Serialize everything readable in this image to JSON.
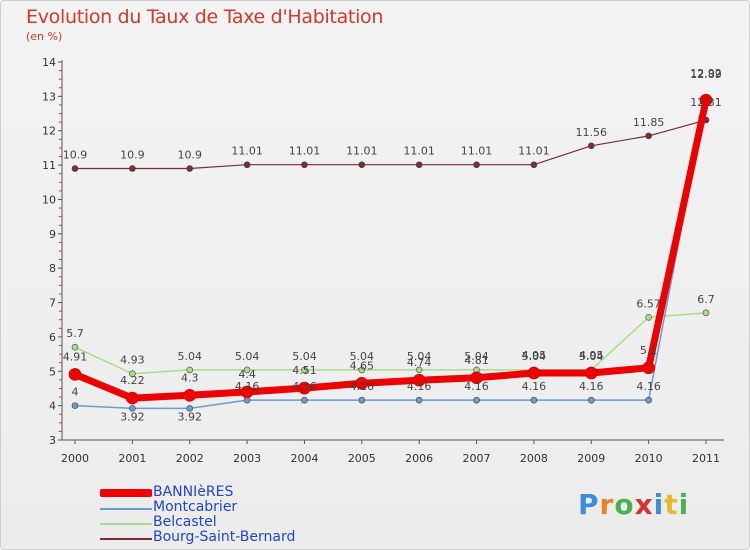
{
  "header": {
    "title": "Evolution du Taux de Taxe d'Habitation",
    "subtitle": "(en %)"
  },
  "logo": {
    "text": "Proxiti",
    "colors": [
      "#3b8fd8",
      "#e8822a",
      "#4caf50",
      "#d6322e",
      "#3b8fd8",
      "#e8b92a",
      "#4caf50"
    ]
  },
  "chart_data": {
    "type": "line",
    "x": [
      "2000",
      "2001",
      "2002",
      "2003",
      "2004",
      "2005",
      "2006",
      "2007",
      "2008",
      "2009",
      "2010",
      "2011"
    ],
    "ylim": [
      3,
      14
    ],
    "yticks": [
      "3",
      "4",
      "5",
      "6",
      "7",
      "8",
      "9",
      "10",
      "11",
      "12",
      "13",
      "14"
    ],
    "grid": false,
    "legend_placement": "bottom-left",
    "series": [
      {
        "name": "Bourg-Saint-Bernard",
        "color": "#7a2e33",
        "width": 1.2,
        "values": [
          10.9,
          10.9,
          10.9,
          11.01,
          11.01,
          11.01,
          11.01,
          11.01,
          11.01,
          11.56,
          11.85,
          12.31
        ],
        "labels": [
          "10.9",
          "10.9",
          "10.9",
          "11.01",
          "11.01",
          "11.01",
          "11.01",
          "11.01",
          "11.01",
          "11.56",
          "11.85",
          "12.31"
        ]
      },
      {
        "name": "Belcastel",
        "color": "#a8dc8a",
        "width": 1.5,
        "values": [
          5.7,
          4.93,
          5.04,
          5.04,
          5.04,
          5.04,
          5.04,
          5.04,
          5.04,
          5.04,
          6.57,
          6.7
        ],
        "labels": [
          "5.7",
          "4.93",
          "5.04",
          "5.04",
          "5.04",
          "5.04",
          "5.04",
          "5.04",
          "5.04",
          "5.04",
          "6.57",
          "6.7"
        ]
      },
      {
        "name": "Montcabrier",
        "color": "#6a9ccf",
        "width": 1.5,
        "values": [
          4,
          3.92,
          3.92,
          4.16,
          4.16,
          4.16,
          4.16,
          4.16,
          4.16,
          4.16,
          4.16,
          12.92
        ],
        "labels": [
          "4",
          "3.92",
          "3.92",
          "4.16",
          "4.16",
          "4.16",
          "4.16",
          "4.16",
          "4.16",
          "4.16",
          "4.16",
          "12.92"
        ]
      },
      {
        "name": "BANNIèRES",
        "color": "#ee0000",
        "width": 7,
        "values": [
          4.91,
          4.22,
          4.3,
          4.4,
          4.51,
          4.65,
          4.74,
          4.81,
          4.95,
          4.95,
          5.1,
          12.89
        ],
        "labels": [
          "4.91",
          "4.22",
          "4.3",
          "4.4",
          "4.51",
          "4.65",
          "4.74",
          "4.81",
          "4.95",
          "4.95",
          "5.1",
          "12.89"
        ]
      }
    ]
  }
}
